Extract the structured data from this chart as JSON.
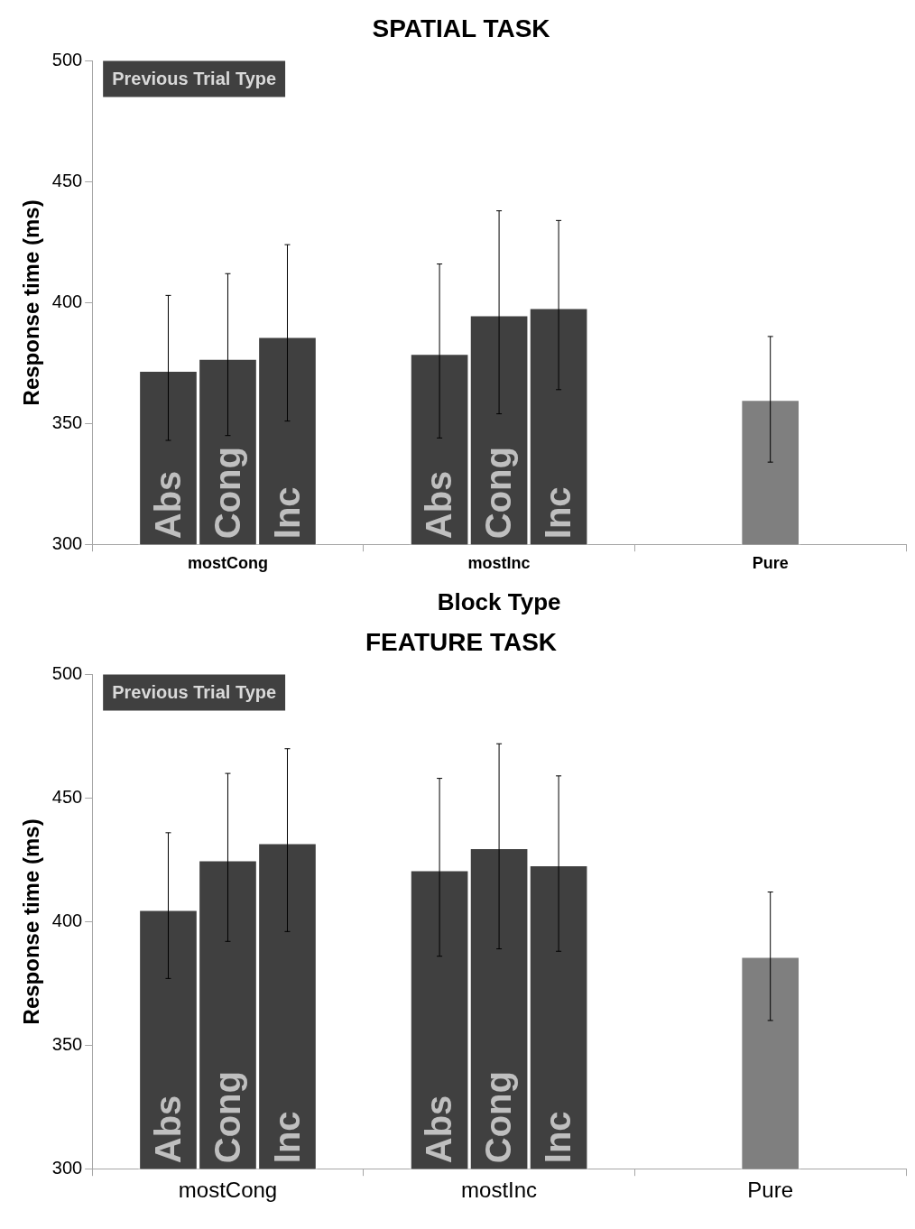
{
  "chart_data": [
    {
      "type": "bar",
      "title": "SPATIAL TASK",
      "xlabel": "Block Type",
      "ylabel": "Response time (ms)",
      "legend_title": "Previous Trial Type",
      "categories": [
        "mostCong",
        "mostInc",
        "Pure"
      ],
      "ylim": [
        300,
        500
      ],
      "yticks": [
        300,
        350,
        400,
        450,
        500
      ],
      "grid": false,
      "series": [
        {
          "name": "Abs",
          "color": "#404040",
          "values": [
            372,
            379,
            null
          ],
          "errors": [
            [
              343,
              403
            ],
            [
              344,
              416
            ],
            null
          ]
        },
        {
          "name": "Cong",
          "color": "#404040",
          "values": [
            377,
            395,
            null
          ],
          "errors": [
            [
              345,
              412
            ],
            [
              354,
              438
            ],
            null
          ]
        },
        {
          "name": "Inc",
          "color": "#404040",
          "values": [
            386,
            398,
            null
          ],
          "errors": [
            [
              351,
              424
            ],
            [
              364,
              434
            ],
            null
          ]
        },
        {
          "color": "#7f7f7f",
          "values": [
            null,
            null,
            360
          ],
          "errors": [
            null,
            null,
            [
              334,
              386
            ]
          ]
        }
      ]
    },
    {
      "type": "bar",
      "title": "FEATURE TASK",
      "ylabel": "Response time (ms)",
      "legend_title": "Previous Trial Type",
      "categories": [
        "mostCong",
        "mostInc",
        "Pure"
      ],
      "ylim": [
        300,
        500
      ],
      "yticks": [
        300,
        350,
        400,
        450,
        500
      ],
      "grid": false,
      "series": [
        {
          "name": "Abs",
          "color": "#404040",
          "values": [
            405,
            421,
            null
          ],
          "errors": [
            [
              377,
              436
            ],
            [
              386,
              458
            ],
            null
          ]
        },
        {
          "name": "Cong",
          "color": "#404040",
          "values": [
            425,
            430,
            null
          ],
          "errors": [
            [
              392,
              460
            ],
            [
              389,
              472
            ],
            null
          ]
        },
        {
          "name": "Inc",
          "color": "#404040",
          "values": [
            432,
            423,
            null
          ],
          "errors": [
            [
              396,
              470
            ],
            [
              388,
              459
            ],
            null
          ]
        },
        {
          "color": "#7f7f7f",
          "values": [
            null,
            null,
            386
          ],
          "errors": [
            null,
            null,
            [
              360,
              412
            ]
          ]
        }
      ]
    }
  ]
}
